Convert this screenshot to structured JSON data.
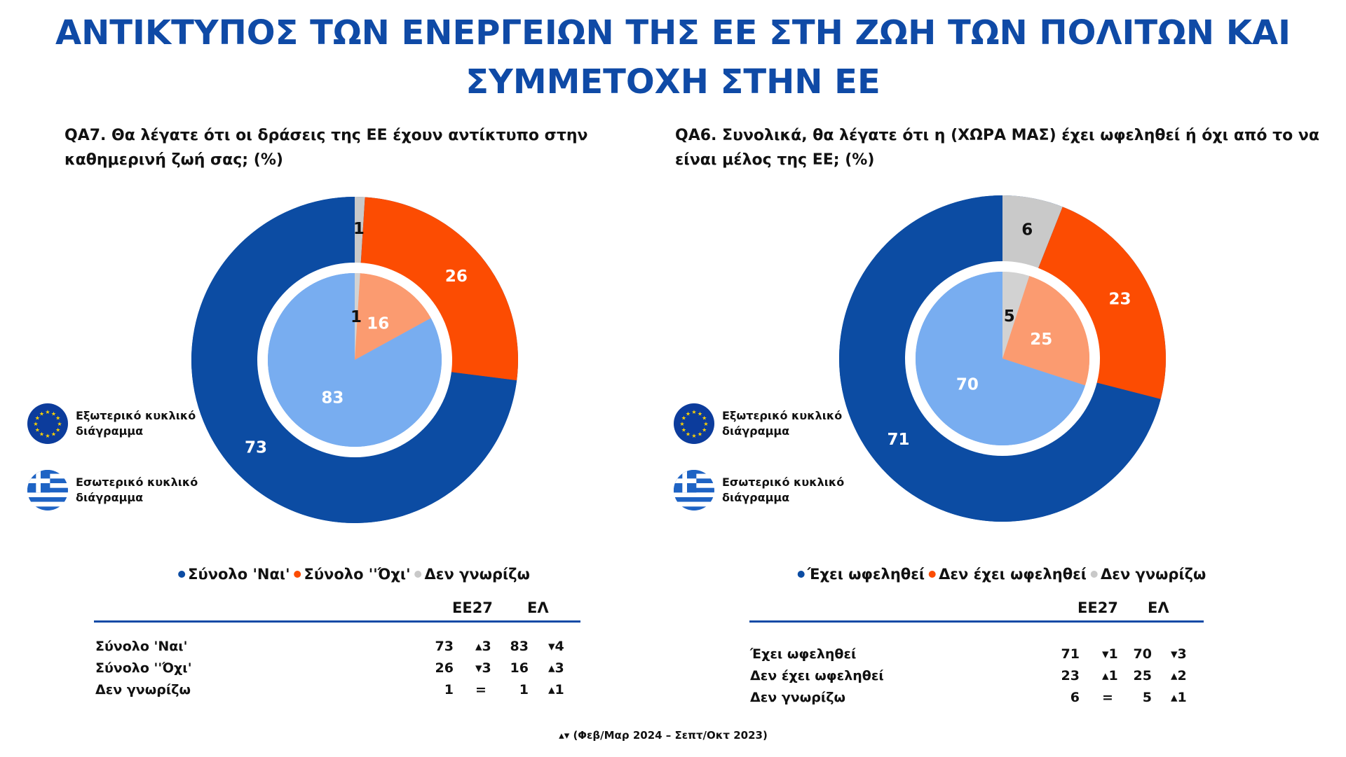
{
  "title": [
    "ΑΝΤΙΚΤΥΠΟΣ ΤΩΝ ΕΝΕΡΓΕΙΩΝ ΤΗΣ ΕΕ ΣΤΗ ΖΩΗ ΤΩΝ ΠΟΛΙΤΩΝ ΚΑΙ",
    "ΣΥΜΜΕΤΟΧΗ ΣΤΗΝ ΕΕ"
  ],
  "icon_legend": {
    "outer": "Εξωτερικό κυκλικό διάγραμμα",
    "inner": "Εσωτερικό κυκλικό διάγραμμα",
    "outer_icon": "eu-flag-icon",
    "inner_icon": "greek-flag-icon"
  },
  "colors": {
    "blue": "#0c4ca3",
    "orange": "#fc4c02",
    "gray": "#c9c9c9",
    "light_blue": "#78adf0",
    "light_orange": "#fb9b70",
    "light_gray": "#d2d2d2",
    "title": "#0f4aa6"
  },
  "chart_data": [
    {
      "type": "pie",
      "title": "QA7. Θα λέγατε ότι οι δράσεις της ΕΕ έχουν αντίκτυπο στην καθημερινή ζωή σας; (%)",
      "categories": [
        "Σύνολο 'Ναι'",
        "Σύνολο ''Όχι'",
        "Δεν γνωρίζω"
      ],
      "series": [
        {
          "name": "ΕΕ27",
          "ring": "outer",
          "values": [
            73,
            26,
            1
          ]
        },
        {
          "name": "ΕΛ",
          "ring": "inner",
          "values": [
            83,
            16,
            1
          ]
        }
      ],
      "legend_placement": "bottom",
      "table": {
        "headers": [
          "ΕΕ27",
          "ΕΛ"
        ],
        "rows": [
          {
            "label": "Σύνολο 'Ναι'",
            "eu": "73",
            "eu_change": "▴3",
            "gr": "83",
            "gr_change": "▾4"
          },
          {
            "label": "Σύνολο ''Όχι'",
            "eu": "26",
            "eu_change": "▾3",
            "gr": "16",
            "gr_change": "▴3"
          },
          {
            "label": "Δεν γνωρίζω",
            "eu": "1",
            "eu_change": "=",
            "gr": "1",
            "gr_change": "▴1"
          }
        ]
      }
    },
    {
      "type": "pie",
      "title": "QA6. Συνολικά, θα λέγατε ότι η (ΧΩΡΑ ΜΑΣ) έχει ωφεληθεί ή όχι από το να είναι μέλος της ΕΕ; (%)",
      "categories": [
        "Έχει ωφεληθεί",
        "Δεν έχει ωφεληθεί",
        "Δεν γνωρίζω"
      ],
      "series": [
        {
          "name": "ΕΕ27",
          "ring": "outer",
          "values": [
            71,
            23,
            6
          ]
        },
        {
          "name": "ΕΛ",
          "ring": "inner",
          "values": [
            70,
            25,
            5
          ]
        }
      ],
      "legend_placement": "bottom",
      "table": {
        "headers": [
          "ΕΕ27",
          "ΕΛ"
        ],
        "rows": [
          {
            "label": "Έχει ωφεληθεί",
            "eu": "71",
            "eu_change": "▾1",
            "gr": "70",
            "gr_change": "▾3"
          },
          {
            "label": "Δεν έχει ωφεληθεί",
            "eu": "23",
            "eu_change": "▴1",
            "gr": "25",
            "gr_change": "▴2"
          },
          {
            "label": "Δεν γνωρίζω",
            "eu": "6",
            "eu_change": "=",
            "gr": "5",
            "gr_change": "▴1"
          }
        ]
      }
    }
  ],
  "footer": "▴▾ (Φεβ/Μαρ 2024 – Σεπτ/Οκτ 2023)"
}
